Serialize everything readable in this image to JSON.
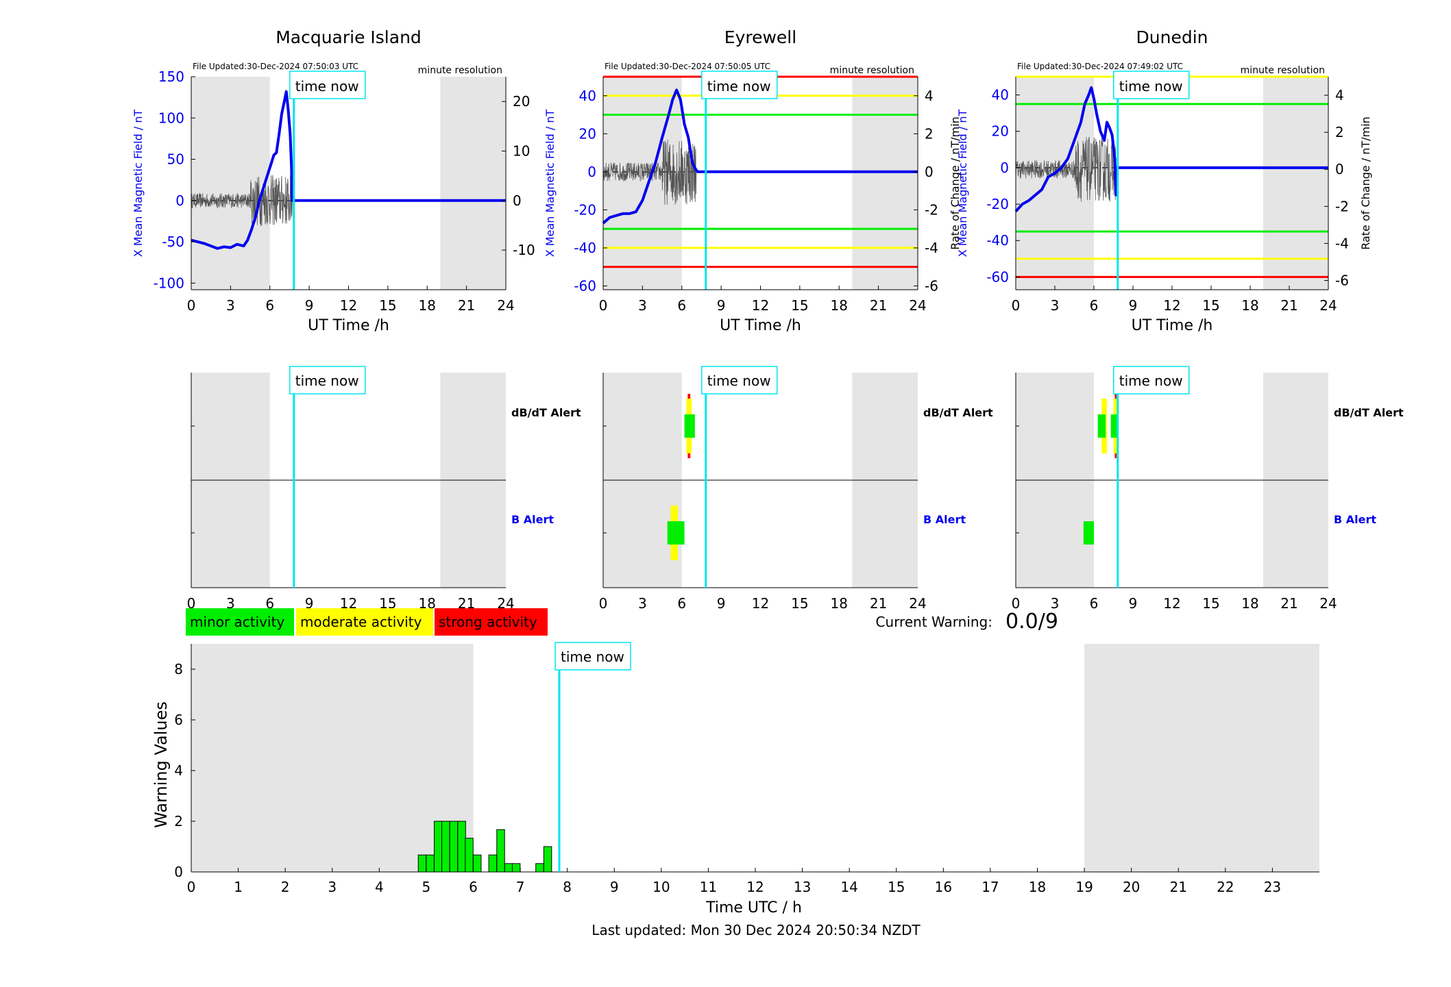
{
  "colors": {
    "shade": "#e5e5e5",
    "bfield": "#0000ee",
    "rate": "#555555",
    "time_now": "#00e5ee",
    "minor": "#00ee00",
    "moderate": "#ffff00",
    "strong": "#ff0000",
    "axis_blue": "#0000ee"
  },
  "time_now_label": "time now",
  "time_now_hour": 7.83,
  "night_shading_hours": [
    [
      0,
      6
    ],
    [
      19,
      24
    ]
  ],
  "stations": [
    {
      "name": "Macquarie Island",
      "file_updated": "File Updated:30-Dec-2024 07:50:03 UTC",
      "resolution": "minute resolution",
      "xlabel": "UT Time /h",
      "ylabel_left": "X Mean Magnetic Field / nT",
      "ylabel_right": "",
      "ylim_left": [
        -108,
        150
      ],
      "yticks_left": [
        -100,
        -50,
        0,
        50,
        100,
        150
      ],
      "ylim_right": [
        -18,
        25
      ],
      "yticks_right": [
        -10,
        0,
        10,
        20
      ],
      "xticks": [
        0,
        3,
        6,
        9,
        12,
        15,
        18,
        21,
        24
      ],
      "thresholds": [],
      "bfield_series": [
        [
          0,
          -48
        ],
        [
          0.5,
          -50
        ],
        [
          1,
          -52
        ],
        [
          1.5,
          -55
        ],
        [
          2,
          -58
        ],
        [
          2.5,
          -56
        ],
        [
          3,
          -57
        ],
        [
          3.5,
          -53
        ],
        [
          4,
          -55
        ],
        [
          4.3,
          -48
        ],
        [
          4.6,
          -35
        ],
        [
          4.9,
          -20
        ],
        [
          5.2,
          0
        ],
        [
          5.5,
          15
        ],
        [
          5.8,
          30
        ],
        [
          6.1,
          45
        ],
        [
          6.3,
          55
        ],
        [
          6.5,
          58
        ],
        [
          6.7,
          80
        ],
        [
          6.9,
          105
        ],
        [
          7.1,
          120
        ],
        [
          7.25,
          132
        ],
        [
          7.4,
          110
        ],
        [
          7.55,
          80
        ],
        [
          7.65,
          40
        ],
        [
          7.7,
          0
        ],
        [
          24,
          0
        ]
      ],
      "rate_amp": 6,
      "rate_end": 7.7,
      "alerts": {
        "dbdt_label": "dB/dT Alert",
        "b_label": "B Alert",
        "dbdt_blocks": [],
        "b_blocks": []
      }
    },
    {
      "name": "Eyrewell",
      "file_updated": "File Updated:30-Dec-2024 07:50:05 UTC",
      "resolution": "minute resolution",
      "xlabel": "UT Time /h",
      "ylabel_left": "X Mean Magnetic Field / nT",
      "ylabel_right": "Rate of Change / nT/min",
      "ylim_left": [
        -62,
        50
      ],
      "yticks_left": [
        -60,
        -40,
        -20,
        0,
        20,
        40
      ],
      "ylim_right": [
        -6.2,
        5
      ],
      "yticks_right": [
        -6,
        -4,
        -2,
        0,
        2,
        4
      ],
      "xticks": [
        0,
        3,
        6,
        9,
        12,
        15,
        18,
        21,
        24
      ],
      "thresholds": [
        {
          "value": 50,
          "color": "red"
        },
        {
          "value": 40,
          "color": "yellow"
        },
        {
          "value": 30,
          "color": "green"
        },
        {
          "value": -30,
          "color": "green"
        },
        {
          "value": -40,
          "color": "yellow"
        },
        {
          "value": -50,
          "color": "red"
        }
      ],
      "bfield_series": [
        [
          0,
          -27
        ],
        [
          0.5,
          -24
        ],
        [
          1,
          -23
        ],
        [
          1.5,
          -22
        ],
        [
          2,
          -22
        ],
        [
          2.5,
          -21
        ],
        [
          3,
          -15
        ],
        [
          3.5,
          -5
        ],
        [
          4,
          5
        ],
        [
          4.5,
          18
        ],
        [
          5,
          30
        ],
        [
          5.3,
          38
        ],
        [
          5.6,
          43
        ],
        [
          5.9,
          38
        ],
        [
          6.2,
          25
        ],
        [
          6.5,
          18
        ],
        [
          6.8,
          5
        ],
        [
          7,
          2
        ],
        [
          7.2,
          0
        ],
        [
          24,
          0
        ]
      ],
      "rate_amp": 2,
      "rate_end": 7.1,
      "alerts": {
        "dbdt_label": "dB/dT Alert",
        "b_label": "B Alert",
        "dbdt_blocks": [
          {
            "t0": 6.45,
            "t1": 6.65,
            "level": "strong"
          },
          {
            "t0": 6.35,
            "t1": 6.75,
            "level": "moderate"
          },
          {
            "t0": 6.2,
            "t1": 7.0,
            "level": "minor"
          }
        ],
        "b_blocks": [
          {
            "t0": 5.15,
            "t1": 5.7,
            "level": "moderate"
          },
          {
            "t0": 4.9,
            "t1": 6.2,
            "level": "minor"
          }
        ]
      }
    },
    {
      "name": "Dunedin",
      "file_updated": "File Updated:30-Dec-2024 07:49:02 UTC",
      "resolution": "minute resolution",
      "xlabel": "UT Time /h",
      "ylabel_left": "X Mean Magnetic Field / nT",
      "ylabel_right": "Rate of Change / nT/min",
      "ylim_left": [
        -67,
        50
      ],
      "yticks_left": [
        -60,
        -40,
        -20,
        0,
        20,
        40
      ],
      "ylim_right": [
        -6.5,
        5
      ],
      "yticks_right": [
        -6,
        -4,
        -2,
        0,
        2,
        4
      ],
      "xticks": [
        0,
        3,
        6,
        9,
        12,
        15,
        18,
        21,
        24
      ],
      "thresholds": [
        {
          "value": 50,
          "color": "yellow"
        },
        {
          "value": 35,
          "color": "green"
        },
        {
          "value": -35,
          "color": "green"
        },
        {
          "value": -50,
          "color": "yellow"
        },
        {
          "value": -60,
          "color": "red"
        }
      ],
      "bfield_series": [
        [
          0,
          -24
        ],
        [
          0.5,
          -20
        ],
        [
          1,
          -18
        ],
        [
          1.5,
          -15
        ],
        [
          2,
          -12
        ],
        [
          2.5,
          -5
        ],
        [
          3,
          -3
        ],
        [
          3.5,
          0
        ],
        [
          4,
          5
        ],
        [
          4.5,
          15
        ],
        [
          5,
          25
        ],
        [
          5.3,
          35
        ],
        [
          5.6,
          40
        ],
        [
          5.8,
          44
        ],
        [
          6,
          38
        ],
        [
          6.2,
          30
        ],
        [
          6.5,
          20
        ],
        [
          6.8,
          15
        ],
        [
          7,
          25
        ],
        [
          7.2,
          22
        ],
        [
          7.4,
          18
        ],
        [
          7.6,
          5
        ],
        [
          7.7,
          -15
        ],
        [
          7.75,
          0
        ],
        [
          24,
          0
        ]
      ],
      "rate_amp": 2,
      "rate_end": 7.7,
      "alerts": {
        "dbdt_label": "dB/dT Alert",
        "b_label": "B Alert",
        "dbdt_blocks": [
          {
            "t0": 6.6,
            "t1": 7.0,
            "level": "moderate"
          },
          {
            "t0": 6.3,
            "t1": 6.9,
            "level": "minor"
          },
          {
            "t0": 7.6,
            "t1": 7.75,
            "level": "strong"
          },
          {
            "t0": 7.5,
            "t1": 7.9,
            "level": "moderate"
          },
          {
            "t0": 7.3,
            "t1": 7.8,
            "level": "minor"
          }
        ],
        "b_blocks": [
          {
            "t0": 5.2,
            "t1": 6.0,
            "level": "minor"
          }
        ]
      }
    }
  ],
  "legend": [
    {
      "label": "minor activity",
      "level": "minor"
    },
    {
      "label": "moderate activity",
      "level": "moderate"
    },
    {
      "label": "strong activity",
      "level": "strong"
    }
  ],
  "current_warning_label": "Current Warning:",
  "current_warning_value": "0.0/9",
  "chart_data": {
    "type": "bar",
    "xlabel": "Time UTC / h",
    "ylabel": "Warning Values",
    "xlim": [
      0,
      24
    ],
    "ylim": [
      0,
      9
    ],
    "xticks": [
      0,
      1,
      2,
      3,
      4,
      5,
      6,
      7,
      8,
      9,
      10,
      11,
      12,
      13,
      14,
      15,
      16,
      17,
      18,
      19,
      20,
      21,
      22,
      23
    ],
    "yticks": [
      0,
      2,
      4,
      6,
      8
    ],
    "bar_width_h": 0.1667,
    "bars": [
      {
        "t": 4.83,
        "value": 0.67
      },
      {
        "t": 5.0,
        "value": 0.67
      },
      {
        "t": 5.17,
        "value": 2
      },
      {
        "t": 5.33,
        "value": 2
      },
      {
        "t": 5.5,
        "value": 2
      },
      {
        "t": 5.67,
        "value": 2
      },
      {
        "t": 5.83,
        "value": 1.33
      },
      {
        "t": 6.0,
        "value": 0.67
      },
      {
        "t": 6.33,
        "value": 0.67
      },
      {
        "t": 6.5,
        "value": 1.67
      },
      {
        "t": 6.67,
        "value": 0.33
      },
      {
        "t": 6.83,
        "value": 0.33
      },
      {
        "t": 7.33,
        "value": 0.33
      },
      {
        "t": 7.5,
        "value": 1
      }
    ]
  },
  "last_updated": "Last updated: Mon 30 Dec 2024 20:50:34 NZDT"
}
